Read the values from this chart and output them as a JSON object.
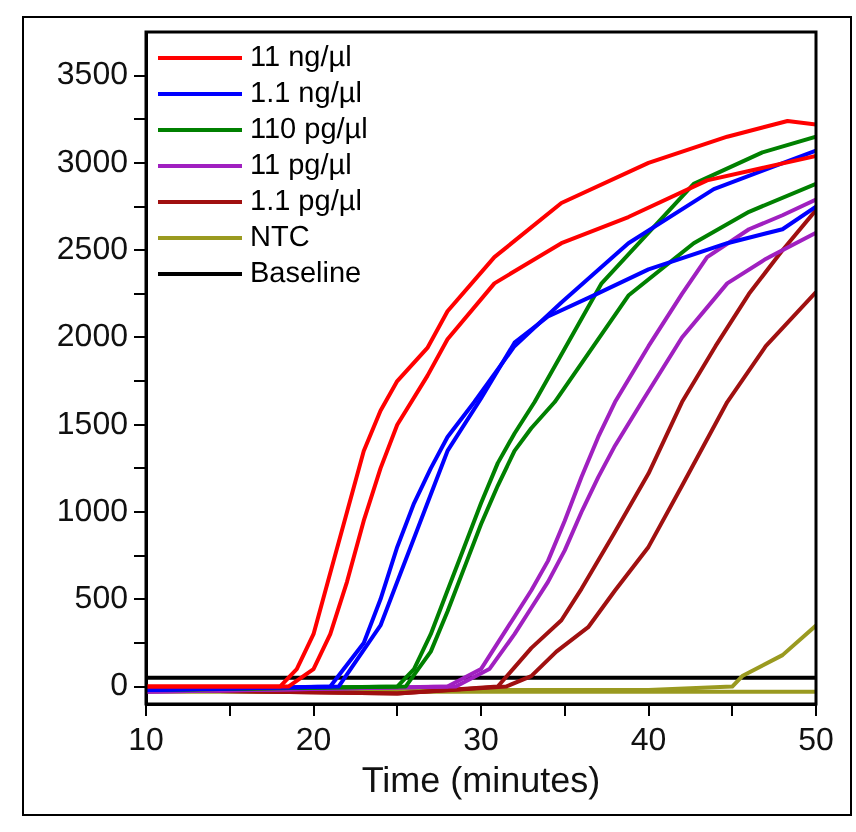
{
  "chart_data": {
    "type": "line",
    "xlabel": "Time (minutes)",
    "xlim": [
      10,
      50
    ],
    "ylim": [
      -100,
      3750
    ],
    "xticks": [
      10,
      {
        "value": 15,
        "label": null
      },
      20,
      {
        "value": 25,
        "label": null
      },
      30,
      {
        "value": 35,
        "label": null
      },
      40,
      {
        "value": 45,
        "label": null
      },
      50
    ],
    "yticks": [
      0,
      {
        "value": 250,
        "label": null
      },
      500,
      {
        "value": 750,
        "label": null
      },
      1000,
      {
        "value": 1250,
        "label": null
      },
      1500,
      {
        "value": 1750,
        "label": null
      },
      2000,
      {
        "value": 2250,
        "label": null
      },
      2500,
      {
        "value": 2750,
        "label": null
      },
      3000,
      {
        "value": 3250,
        "label": null
      },
      3500
    ],
    "grid": false,
    "legend": "top left",
    "marker": "none",
    "line_style": "solid",
    "series": [
      {
        "name": "11 ng/µl",
        "color": "#ff0000",
        "x": [
          10,
          18,
          19,
          20,
          21,
          22,
          23,
          24,
          25,
          26.8,
          28,
          30.8,
          34.8,
          40,
          44.7,
          48.3,
          50
        ],
        "values": [
          0,
          0,
          100,
          300,
          650,
          1000,
          1350,
          1580,
          1750,
          1940,
          2150,
          2460,
          2770,
          3000,
          3150,
          3240,
          3220
        ]
      },
      {
        "color": "#ff0000",
        "x": [
          10,
          18.5,
          20,
          21,
          22,
          23,
          24,
          25,
          26.8,
          28,
          30.8,
          34.8,
          38.8,
          43.5,
          50
        ],
        "values": [
          0,
          0,
          100,
          300,
          600,
          950,
          1250,
          1500,
          1780,
          1990,
          2310,
          2540,
          2690,
          2900,
          3040
        ]
      },
      {
        "name": "1.1 ng/µl",
        "color": "#0000ff",
        "x": [
          10,
          21,
          23,
          24,
          25,
          26,
          27,
          28,
          29.6,
          32,
          34.8,
          38.8,
          43.9,
          50
        ],
        "values": [
          -20,
          0,
          250,
          500,
          800,
          1050,
          1250,
          1430,
          1630,
          1950,
          2200,
          2540,
          2850,
          3070
        ]
      },
      {
        "color": "#0000ff",
        "x": [
          10,
          21.5,
          24,
          25,
          26,
          27,
          28,
          30,
          32,
          34,
          36.7,
          40,
          44.7,
          48,
          50
        ],
        "values": [
          -20,
          0,
          350,
          600,
          850,
          1100,
          1350,
          1650,
          1970,
          2120,
          2240,
          2390,
          2540,
          2620,
          2750
        ]
      },
      {
        "name": "110 pg/µl",
        "color": "#008000",
        "x": [
          10,
          25,
          26,
          27,
          28,
          29,
          30,
          31,
          32,
          33.2,
          37.2,
          42.7,
          46.8,
          50
        ],
        "values": [
          -20,
          0,
          100,
          300,
          550,
          800,
          1050,
          1280,
          1450,
          1630,
          2310,
          2880,
          3060,
          3150
        ]
      },
      {
        "color": "#008000",
        "x": [
          10,
          25.5,
          27,
          28,
          29,
          30,
          31,
          32,
          33,
          34.4,
          38.8,
          42.7,
          46,
          50
        ],
        "values": [
          -20,
          0,
          200,
          430,
          680,
          930,
          1150,
          1350,
          1480,
          1630,
          2240,
          2540,
          2720,
          2880
        ]
      },
      {
        "name": "11 pg/µl",
        "color": "#a020c0",
        "x": [
          10,
          28,
          30,
          31,
          32,
          33,
          34,
          35,
          36,
          37,
          38,
          40,
          42,
          43.5,
          46,
          48,
          50
        ],
        "values": [
          -30,
          0,
          100,
          250,
          400,
          550,
          720,
          950,
          1200,
          1430,
          1630,
          1950,
          2250,
          2460,
          2620,
          2700,
          2790
        ]
      },
      {
        "color": "#a020c0",
        "x": [
          10,
          28.5,
          30.5,
          32,
          33,
          34,
          35,
          36,
          37,
          38,
          39.6,
          42,
          44.7,
          47,
          50
        ],
        "values": [
          -30,
          0,
          100,
          300,
          450,
          600,
          780,
          1000,
          1200,
          1380,
          1630,
          2000,
          2310,
          2450,
          2600
        ]
      },
      {
        "name": "1.1 pg/µl",
        "color": "#a01010",
        "x": [
          10,
          25,
          31,
          32,
          33,
          34.8,
          36,
          37.9,
          40,
          42,
          44,
          46,
          48,
          50
        ],
        "values": [
          -20,
          -40,
          0,
          110,
          220,
          380,
          560,
          870,
          1220,
          1630,
          1950,
          2250,
          2500,
          2730
        ]
      },
      {
        "color": "#a01010",
        "x": [
          10,
          25,
          31.5,
          33,
          34.5,
          36.4,
          38,
          40,
          42,
          44.7,
          47,
          50
        ],
        "values": [
          -20,
          -40,
          0,
          60,
          200,
          340,
          550,
          800,
          1150,
          1630,
          1950,
          2260
        ]
      },
      {
        "name": "NTC",
        "color": "#9a9a20",
        "x": [
          10,
          20,
          30,
          40,
          45,
          45.6,
          48,
          50
        ],
        "values": [
          -10,
          -20,
          -20,
          -20,
          0,
          60,
          180,
          350
        ]
      },
      {
        "color": "#9a9a20",
        "x": [
          10,
          20,
          30,
          40,
          50
        ],
        "values": [
          -30,
          -30,
          -30,
          -30,
          -30
        ]
      },
      {
        "name": "Baseline",
        "color": "#000000",
        "x": [
          10,
          50
        ],
        "values": [
          50,
          50
        ]
      }
    ]
  }
}
